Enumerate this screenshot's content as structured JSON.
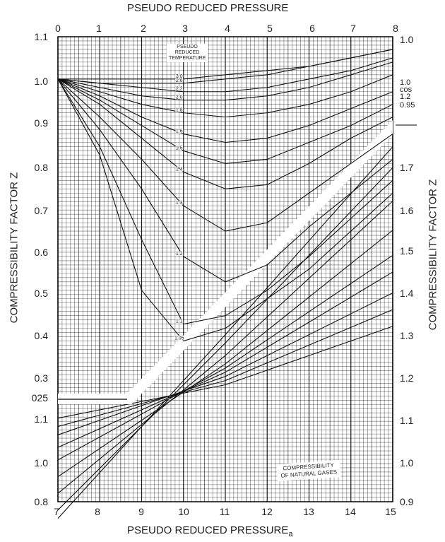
{
  "chart_data": [
    {
      "type": "line",
      "title": "PSEUDO REDUCED PRESSURE",
      "xlabel": "PSEUDO REDUCED PRESSURE",
      "ylabel": "COMPRESSIBILITY FACTOR Z",
      "xlim": [
        0,
        8
      ],
      "ylim": [
        0.25,
        1.1
      ],
      "x_ticks": [
        "0",
        "1",
        "2",
        "3",
        "4",
        "5",
        "6",
        "7",
        "8"
      ],
      "y_ticks": [
        "1.1",
        "1.0",
        "0.9",
        "0.8",
        "0.7",
        "0.6",
        "0.5",
        "0.4",
        "0.3",
        "025"
      ],
      "right_ticks": [
        "1.0",
        "1.0",
        "cos",
        "1.2",
        "0.95",
        "1.7",
        "1.6",
        "1.5",
        "1.4",
        "1.3",
        "1.2"
      ],
      "grid": true,
      "annotation": "PSEUDO REDUCED TEMPERATURE",
      "x": [
        0,
        1,
        2,
        3,
        4,
        5,
        6,
        7,
        8
      ],
      "series": [
        {
          "name": "3.0",
          "values": [
            1,
            1.0,
            1.0,
            1.0,
            1.01,
            1.02,
            1.03,
            1.05,
            1.07
          ]
        },
        {
          "name": "2.6",
          "values": [
            1,
            0.99,
            0.99,
            0.99,
            1.0,
            1.01,
            1.03,
            1.05,
            1.07
          ]
        },
        {
          "name": "2.2",
          "values": [
            1,
            0.99,
            0.98,
            0.97,
            0.97,
            0.98,
            1.0,
            1.02,
            1.05
          ]
        },
        {
          "name": "2.0",
          "values": [
            1,
            0.98,
            0.96,
            0.95,
            0.95,
            0.96,
            0.98,
            1.01,
            1.04
          ]
        },
        {
          "name": "1.8",
          "values": [
            1,
            0.97,
            0.94,
            0.92,
            0.91,
            0.92,
            0.94,
            0.97,
            1.01
          ]
        },
        {
          "name": "1.6",
          "values": [
            1,
            0.96,
            0.91,
            0.87,
            0.85,
            0.86,
            0.89,
            0.93,
            0.97
          ]
        },
        {
          "name": "1.5",
          "values": [
            1,
            0.95,
            0.89,
            0.83,
            0.8,
            0.81,
            0.85,
            0.89,
            0.94
          ]
        },
        {
          "name": "1.4",
          "values": [
            1,
            0.94,
            0.86,
            0.78,
            0.74,
            0.75,
            0.8,
            0.86,
            0.91
          ]
        },
        {
          "name": "1.3",
          "values": [
            1,
            0.91,
            0.81,
            0.7,
            0.64,
            0.66,
            0.73,
            0.8,
            0.87
          ]
        },
        {
          "name": "1.2",
          "values": [
            1,
            0.88,
            0.74,
            0.58,
            0.52,
            0.56,
            0.65,
            0.73,
            0.81
          ]
        },
        {
          "name": "1.1",
          "values": [
            1,
            0.84,
            0.62,
            0.42,
            0.44,
            0.5,
            0.58,
            0.67,
            0.76
          ]
        },
        {
          "name": "1.05",
          "values": [
            1,
            0.82,
            0.5,
            0.38,
            0.41,
            0.48,
            0.55,
            0.64,
            0.73
          ]
        }
      ]
    },
    {
      "type": "line",
      "xlabel": "PSEUDO REDUCED PRESSURE",
      "xlabel_sub": "a",
      "xlim": [
        7,
        15
      ],
      "x_ticks": [
        "7",
        "8",
        "9",
        "10",
        "11",
        "12",
        "13",
        "14",
        "15"
      ],
      "y_ticks": [
        "1.1",
        "1.0",
        "0.8"
      ],
      "right_ticks": [
        "1.1",
        "1.0",
        "0.9"
      ],
      "ylabel": "COMPRESSIBILITY FACTOR Z",
      "annotation": "COMPRESSIBILITY OF NATURAL GASES",
      "x": [
        7,
        11,
        15
      ],
      "series": [
        {
          "name": "1.05",
          "values": [
            0.86,
            1.3,
            1.75
          ]
        },
        {
          "name": "1.1",
          "values": [
            0.88,
            1.28,
            1.7
          ]
        },
        {
          "name": "1.2",
          "values": [
            0.92,
            1.25,
            1.62
          ]
        },
        {
          "name": "1.3",
          "values": [
            0.96,
            1.23,
            1.55
          ]
        },
        {
          "name": "1.4",
          "values": [
            1.0,
            1.22,
            1.49
          ]
        },
        {
          "name": "1.5",
          "values": [
            1.03,
            1.21,
            1.45
          ]
        },
        {
          "name": "1.7",
          "values": [
            1.06,
            1.2,
            1.4
          ]
        },
        {
          "name": "2.0",
          "values": [
            1.08,
            1.19,
            1.36
          ]
        },
        {
          "name": "3.0",
          "values": [
            1.1,
            1.18,
            1.32
          ]
        }
      ]
    }
  ]
}
